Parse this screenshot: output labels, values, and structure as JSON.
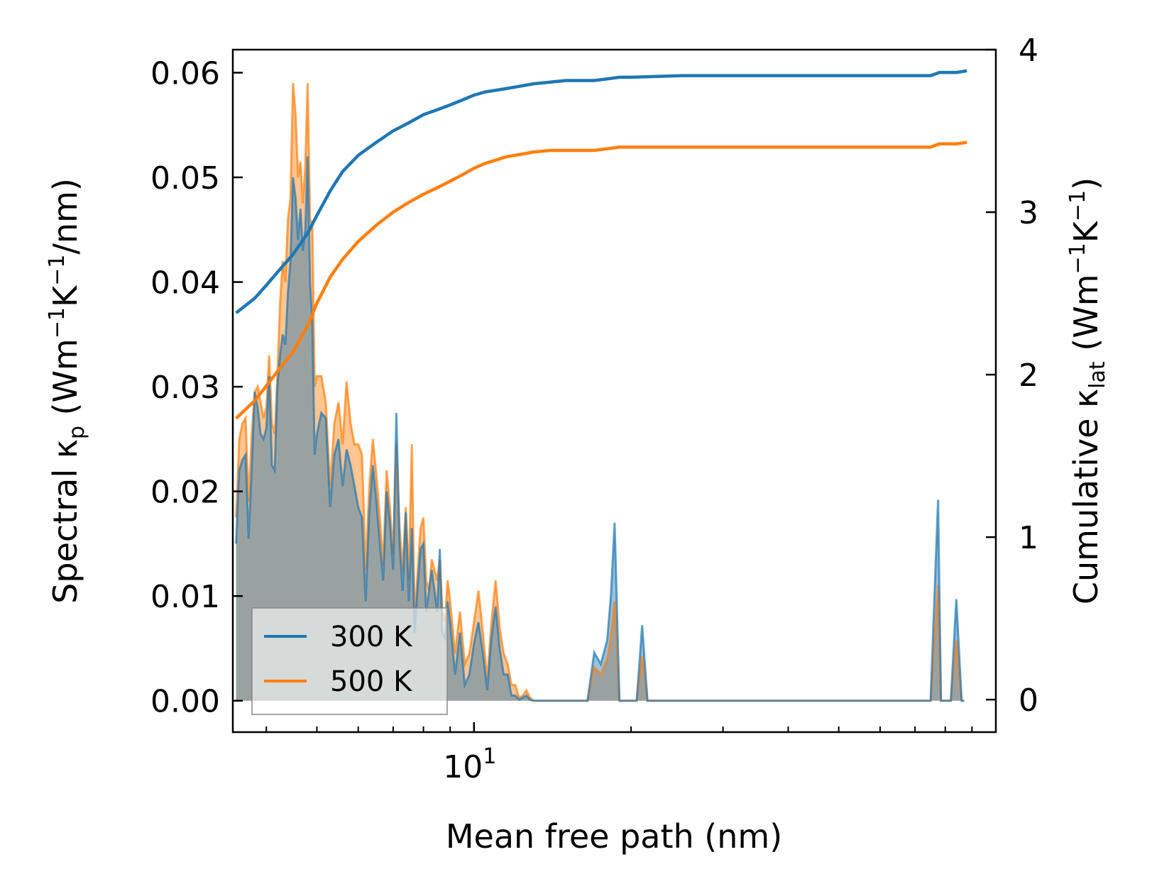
{
  "chart_data": {
    "type": "line",
    "xscale": "log",
    "xlim": [
      3.45,
      100
    ],
    "xlabel": "Mean free path (nm)",
    "x_tick_labels": [
      {
        "value": 10,
        "base": "10",
        "exp": "1"
      }
    ],
    "left_axis": {
      "label_parts": [
        "Spectral κ",
        "p",
        " (Wm",
        "−1",
        "K",
        "−1",
        "/nm)"
      ],
      "ylim": [
        -0.003,
        0.0622
      ],
      "ticks": [
        0.0,
        0.01,
        0.02,
        0.03,
        0.04,
        0.05,
        0.06
      ],
      "tick_labels": [
        "0.00",
        "0.01",
        "0.02",
        "0.03",
        "0.04",
        "0.05",
        "0.06"
      ]
    },
    "right_axis": {
      "label_parts": [
        "Cumulative κ",
        "lat",
        " (Wm",
        "−1",
        "K",
        "−1",
        ")"
      ],
      "ylim": [
        -0.2,
        4.0
      ],
      "ticks": [
        0,
        1,
        2,
        3,
        4
      ],
      "tick_labels": [
        "0",
        "1",
        "2",
        "3",
        "4"
      ]
    },
    "legend": {
      "position": "lower-left",
      "entries": [
        "300 K",
        "500 K"
      ]
    },
    "colors": {
      "300 K": "#1f77b4",
      "500 K": "#ff7f0e",
      "overlap_fill": "#c69c72"
    },
    "spectral": {
      "x": [
        3.5,
        3.55,
        3.6,
        3.65,
        3.7,
        3.75,
        3.8,
        3.85,
        3.9,
        3.95,
        4.0,
        4.05,
        4.1,
        4.15,
        4.2,
        4.25,
        4.3,
        4.35,
        4.4,
        4.45,
        4.5,
        4.55,
        4.6,
        4.65,
        4.7,
        4.75,
        4.8,
        4.85,
        4.9,
        4.95,
        5.0,
        5.1,
        5.2,
        5.3,
        5.4,
        5.5,
        5.6,
        5.7,
        5.8,
        5.9,
        6.0,
        6.1,
        6.2,
        6.3,
        6.4,
        6.5,
        6.6,
        6.7,
        6.8,
        6.9,
        7.0,
        7.1,
        7.2,
        7.3,
        7.4,
        7.5,
        7.6,
        7.7,
        7.8,
        7.9,
        8.0,
        8.1,
        8.2,
        8.3,
        8.4,
        8.5,
        8.6,
        8.7,
        8.8,
        8.9,
        9.0,
        9.2,
        9.4,
        9.6,
        9.8,
        10.0,
        10.2,
        10.4,
        10.6,
        10.8,
        11.0,
        11.2,
        11.4,
        11.6,
        11.8,
        12.0,
        12.2,
        12.4,
        12.6,
        12.8,
        13.0,
        13.2,
        13.4,
        13.6,
        13.8,
        14.0,
        14.2,
        14.4,
        14.6,
        14.8,
        15.0,
        15.3,
        15.6,
        15.9,
        16.2,
        16.5,
        17.0,
        17.5,
        18.0,
        18.3,
        18.6,
        19.0,
        19.5,
        20.0,
        20.5,
        21.0,
        21.5,
        22.0,
        30.0,
        60.0,
        75.0,
        77.5,
        78.5,
        80.0,
        82.0,
        84.0,
        86.0,
        87.0,
        88.0
      ],
      "series": [
        {
          "name": "300 K",
          "values": [
            0.015,
            0.022,
            0.023,
            0.0235,
            0.0155,
            0.022,
            0.0295,
            0.028,
            0.0255,
            0.025,
            0.026,
            0.031,
            0.0225,
            0.022,
            0.03,
            0.033,
            0.035,
            0.034,
            0.039,
            0.042,
            0.05,
            0.048,
            0.044,
            0.047,
            0.043,
            0.045,
            0.052,
            0.04,
            0.036,
            0.0235,
            0.0255,
            0.0275,
            0.027,
            0.0185,
            0.0235,
            0.025,
            0.0205,
            0.024,
            0.0225,
            0.0205,
            0.0185,
            0.0175,
            0.0095,
            0.018,
            0.0225,
            0.019,
            0.015,
            0.0115,
            0.02,
            0.017,
            0.0125,
            0.0275,
            0.015,
            0.0105,
            0.018,
            0.0095,
            0.0165,
            0.0065,
            0.011,
            0.0145,
            0.015,
            0.0085,
            0.0105,
            0.0125,
            0.0105,
            0.0085,
            0.0145,
            0.0065,
            0.006,
            0.0095,
            0.0075,
            0.0025,
            0.0065,
            0.0015,
            0.0025,
            0.0055,
            0.0075,
            0.0045,
            0.001,
            0.006,
            0.009,
            0.005,
            0.0025,
            0.0025,
            0.0005,
            0.0005,
            0.0001,
            0.0003,
            0.0005,
            0.0001,
            0.0,
            0.0,
            0.0,
            0.0,
            0.0,
            0.0,
            0.0,
            0.0,
            0.0,
            0.0,
            0.0,
            0.0,
            0.0,
            0.0,
            0.0,
            0.0,
            0.0046,
            0.0035,
            0.0058,
            0.0101,
            0.017,
            0.0,
            0.0,
            0.0,
            0.0,
            0.0072,
            0.0,
            0.0,
            0.0,
            0.0,
            0.0,
            0.0192,
            0.0,
            0.0,
            0.0,
            0.0097,
            0.0,
            0.0
          ]
        },
        {
          "name": "500 K",
          "values": [
            0.0175,
            0.025,
            0.0265,
            0.027,
            0.019,
            0.0255,
            0.0295,
            0.03,
            0.0285,
            0.027,
            0.028,
            0.033,
            0.0265,
            0.0255,
            0.031,
            0.038,
            0.042,
            0.04,
            0.046,
            0.048,
            0.059,
            0.056,
            0.05,
            0.0515,
            0.0475,
            0.051,
            0.059,
            0.046,
            0.0455,
            0.03,
            0.031,
            0.031,
            0.0285,
            0.0205,
            0.0265,
            0.0285,
            0.0245,
            0.0305,
            0.0265,
            0.0245,
            0.0245,
            0.0235,
            0.0125,
            0.0205,
            0.025,
            0.0215,
            0.0175,
            0.013,
            0.022,
            0.0185,
            0.014,
            0.0245,
            0.0165,
            0.0125,
            0.0185,
            0.0115,
            0.0245,
            0.0075,
            0.0125,
            0.0165,
            0.0175,
            0.0115,
            0.0105,
            0.0135,
            0.0125,
            0.0115,
            0.0135,
            0.0085,
            0.0075,
            0.0115,
            0.0095,
            0.0045,
            0.0085,
            0.0035,
            0.0045,
            0.0075,
            0.0105,
            0.0065,
            0.002,
            0.0075,
            0.0115,
            0.007,
            0.0045,
            0.0035,
            0.0015,
            0.0015,
            0.0003,
            0.0005,
            0.001,
            0.0003,
            0.0,
            0.0,
            0.0,
            0.0,
            0.0,
            0.0,
            0.0,
            0.0,
            0.0,
            0.0,
            0.0,
            0.0,
            0.0,
            0.0,
            0.0,
            0.0,
            0.0032,
            0.0025,
            0.004,
            0.0062,
            0.0095,
            0.0,
            0.0,
            0.0,
            0.0,
            0.0043,
            0.0,
            0.0,
            0.0,
            0.0,
            0.0,
            0.011,
            0.0,
            0.0,
            0.0,
            0.0058,
            0.0,
            0.0
          ]
        }
      ]
    },
    "cumulative": {
      "x": [
        3.5,
        3.8,
        4.0,
        4.2,
        4.5,
        4.8,
        5.0,
        5.3,
        5.6,
        6.0,
        6.5,
        7.0,
        7.5,
        8.0,
        8.5,
        9.0,
        9.5,
        10.0,
        10.5,
        11.0,
        11.5,
        12.0,
        13.0,
        14.0,
        15.0,
        16.0,
        17.0,
        18.0,
        19.0,
        20.0,
        25.0,
        30.0,
        50.0,
        75.0,
        78.0,
        84.0,
        88.0
      ],
      "series": [
        {
          "name": "300 K",
          "values": [
            2.38,
            2.47,
            2.55,
            2.63,
            2.74,
            2.87,
            2.98,
            3.13,
            3.25,
            3.35,
            3.43,
            3.5,
            3.55,
            3.6,
            3.63,
            3.66,
            3.69,
            3.72,
            3.74,
            3.75,
            3.76,
            3.77,
            3.79,
            3.8,
            3.81,
            3.81,
            3.81,
            3.82,
            3.83,
            3.83,
            3.84,
            3.84,
            3.84,
            3.84,
            3.86,
            3.86,
            3.87
          ]
        },
        {
          "name": "500 K",
          "values": [
            1.73,
            1.84,
            1.93,
            2.02,
            2.14,
            2.3,
            2.44,
            2.6,
            2.71,
            2.82,
            2.92,
            3.0,
            3.06,
            3.11,
            3.15,
            3.19,
            3.23,
            3.27,
            3.3,
            3.32,
            3.34,
            3.35,
            3.37,
            3.38,
            3.38,
            3.38,
            3.38,
            3.39,
            3.4,
            3.4,
            3.4,
            3.4,
            3.4,
            3.4,
            3.42,
            3.42,
            3.43
          ]
        }
      ]
    }
  }
}
